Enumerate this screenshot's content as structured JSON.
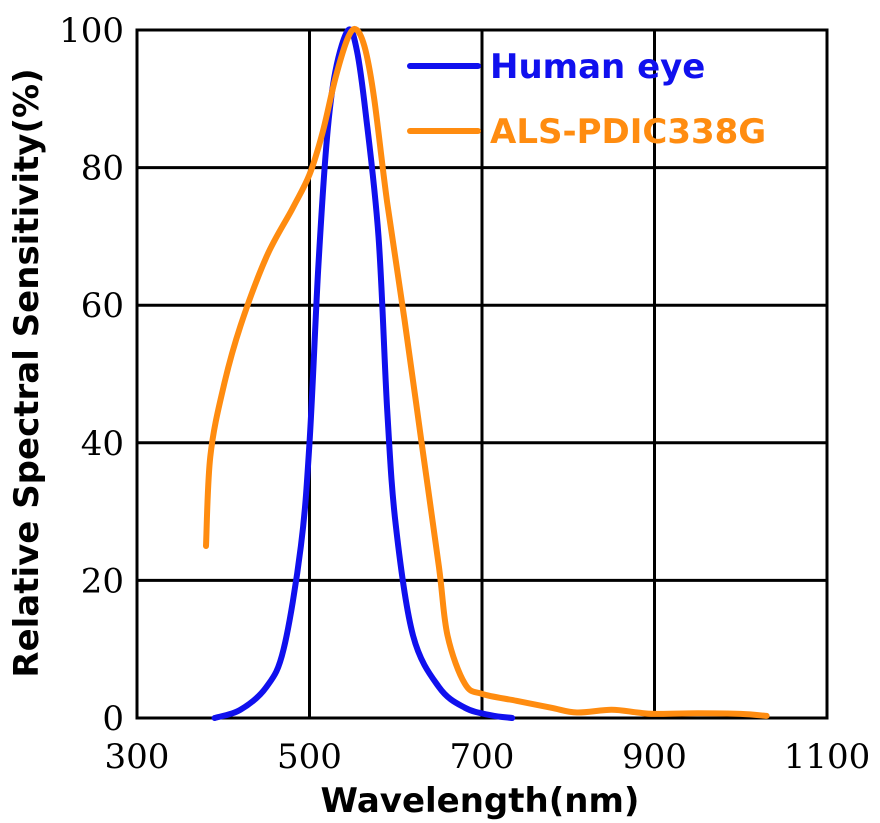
{
  "chart_data": {
    "type": "line",
    "title": "",
    "xlabel": "Wavelength(nm)",
    "ylabel": "Relative Spectral Sensitivity(%)",
    "xlim": [
      300,
      1100
    ],
    "ylim": [
      0,
      100
    ],
    "x_ticks": [
      300,
      500,
      700,
      900,
      1100
    ],
    "y_ticks": [
      0,
      20,
      40,
      60,
      80,
      100
    ],
    "x_tick_labels": [
      "300",
      "500",
      "700",
      "900",
      "1100"
    ],
    "y_tick_labels": [
      "0",
      "20",
      "40",
      "60",
      "80",
      "100"
    ],
    "grid": true,
    "legend_position": "top-right",
    "series": [
      {
        "name": "Human eye",
        "color": "#1010ee",
        "x": [
          390,
          420,
          450,
          470,
          490,
          500,
          510,
          520,
          530,
          545,
          555,
          565,
          580,
          590,
          600,
          620,
          650,
          680,
          710,
          735
        ],
        "y": [
          0,
          1.2,
          4.5,
          10,
          25,
          40,
          65,
          84,
          94,
          100,
          97,
          88,
          70,
          45,
          28,
          12,
          4.5,
          1.5,
          0.4,
          0
        ]
      },
      {
        "name": "ALS-PDIC338G",
        "color": "#ff8c10",
        "x": [
          380,
          385,
          400,
          420,
          450,
          480,
          500,
          515,
          530,
          545,
          555,
          565,
          575,
          590,
          610,
          630,
          650,
          660,
          680,
          700,
          740,
          780,
          810,
          850,
          880,
          900,
          950,
          1000,
          1030
        ],
        "y": [
          25,
          38,
          48,
          57,
          67,
          74,
          79,
          85,
          93,
          99,
          100,
          97,
          90,
          75,
          58,
          40,
          22,
          12,
          5,
          3.5,
          2.5,
          1.5,
          0.8,
          1.2,
          0.8,
          0.6,
          0.7,
          0.6,
          0.3
        ]
      }
    ]
  }
}
